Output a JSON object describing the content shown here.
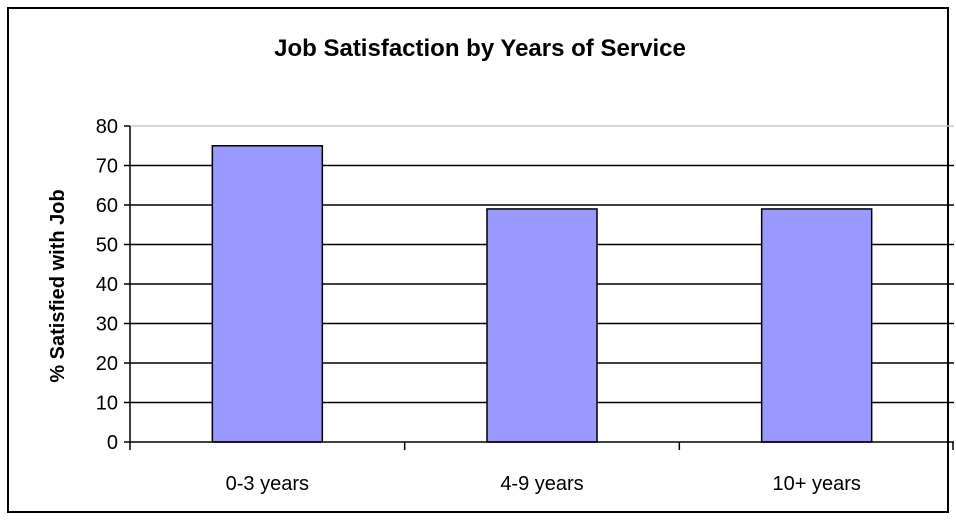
{
  "chart_data": {
    "type": "bar",
    "title": "Job Satisfaction by Years of Service",
    "xlabel": "",
    "ylabel": "% Satisfied with Job",
    "categories": [
      "0-3 years",
      "4-9 years",
      "10+ years"
    ],
    "series": [
      {
        "values": [
          75,
          59,
          59
        ]
      }
    ],
    "ylim": [
      0,
      80
    ],
    "yticks": [
      0,
      10,
      20,
      30,
      40,
      50,
      60,
      70,
      80
    ],
    "grid": true,
    "legend": "none",
    "bar_color": "#9999ff"
  }
}
